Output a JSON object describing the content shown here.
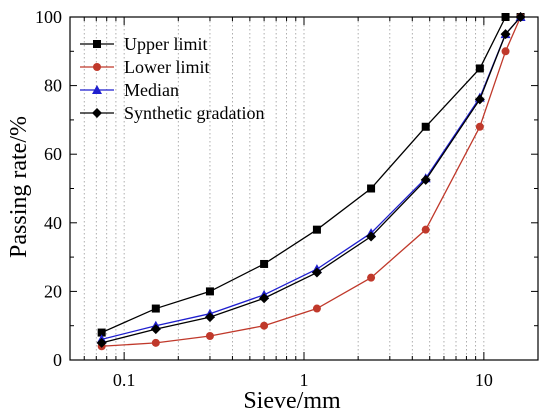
{
  "chart_data": {
    "type": "line",
    "title": "",
    "xlabel": "Sieve/mm",
    "ylabel": "Passing rate/%",
    "x_scale": "log",
    "xlim": [
      0.05,
      20
    ],
    "ylim": [
      0,
      100
    ],
    "x_ticks": [
      0.1,
      1,
      10
    ],
    "x_tick_labels": [
      "0.1",
      "1",
      "10"
    ],
    "y_ticks": [
      0,
      20,
      40,
      60,
      80,
      100
    ],
    "y_tick_labels": [
      "0",
      "20",
      "40",
      "60",
      "80",
      "100"
    ],
    "grid": "vertical-dotted",
    "legend": "top-left",
    "x": [
      0.075,
      0.15,
      0.3,
      0.6,
      1.18,
      2.36,
      4.75,
      9.5,
      13.2,
      16
    ],
    "series": [
      {
        "name": "Upper limit",
        "marker": "square",
        "color": "#000000",
        "marker_color": "#000000",
        "values": [
          8,
          15,
          20,
          28,
          38,
          50,
          68,
          85,
          100,
          100
        ]
      },
      {
        "name": "Lower limit",
        "marker": "circle",
        "color": "#c0392b",
        "marker_color": "#c0392b",
        "values": [
          4,
          5,
          7,
          10,
          15,
          24,
          38,
          68,
          90,
          100
        ]
      },
      {
        "name": "Median",
        "marker": "triangle",
        "color": "#1f1fcf",
        "marker_color": "#1f1fcf",
        "values": [
          6,
          10,
          13.5,
          19,
          26.5,
          37,
          53,
          76.5,
          95,
          100
        ]
      },
      {
        "name": "Synthetic gradation",
        "marker": "diamond",
        "color": "#000000",
        "marker_color": "#000000",
        "values": [
          5,
          9,
          12.5,
          18,
          25.5,
          36,
          52.5,
          76,
          95,
          100
        ]
      }
    ]
  }
}
